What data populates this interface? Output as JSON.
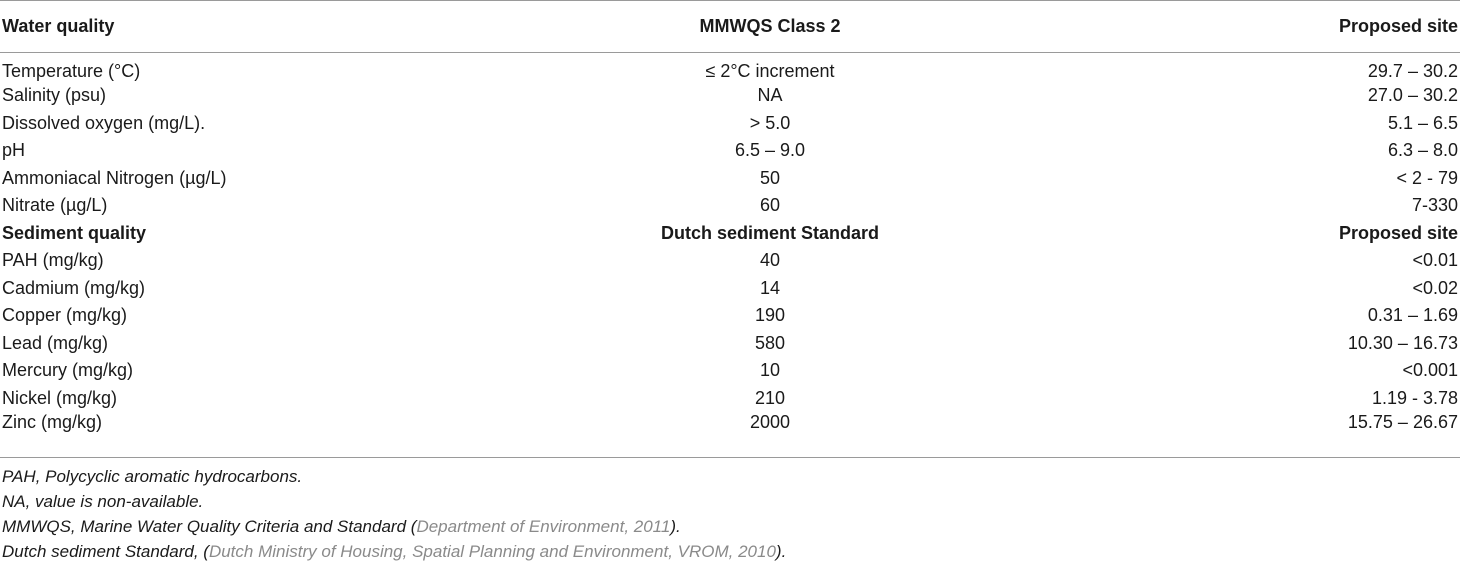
{
  "header": {
    "col1": "Water quality",
    "col2": "MMWQS Class 2",
    "col3": "Proposed site"
  },
  "water_rows": [
    {
      "param": "Temperature (°C)",
      "standard": "≤ 2°C increment",
      "site": "29.7 – 30.2"
    },
    {
      "param": "Salinity (psu)",
      "standard": "NA",
      "site": "27.0 – 30.2"
    },
    {
      "param": "Dissolved oxygen (mg/L).",
      "standard": "> 5.0",
      "site": "5.1 – 6.5"
    },
    {
      "param": "pH",
      "standard": "6.5 – 9.0",
      "site": "6.3 – 8.0"
    },
    {
      "param": "Ammoniacal Nitrogen (µg/L)",
      "standard": "50",
      "site": "< 2 - 79"
    },
    {
      "param": "Nitrate (µg/L)",
      "standard": "60",
      "site": "7-330"
    }
  ],
  "sediment_header": {
    "col1": "Sediment quality",
    "col2": "Dutch sediment Standard",
    "col3": "Proposed site"
  },
  "sediment_rows": [
    {
      "param": "PAH (mg/kg)",
      "standard": "40",
      "site": "<0.01"
    },
    {
      "param": "Cadmium (mg/kg)",
      "standard": "14",
      "site": "<0.02"
    },
    {
      "param": "Copper (mg/kg)",
      "standard": "190",
      "site": "0.31 – 1.69"
    },
    {
      "param": "Lead (mg/kg)",
      "standard": "580",
      "site": "10.30 – 16.73"
    },
    {
      "param": "Mercury (mg/kg)",
      "standard": "10",
      "site": "<0.001"
    },
    {
      "param": "Nickel (mg/kg)",
      "standard": "210",
      "site": "1.19 - 3.78"
    },
    {
      "param": "Zinc (mg/kg)",
      "standard": "2000",
      "site": "15.75 – 26.67"
    }
  ],
  "footnotes": {
    "pah": "PAH, Polycyclic aromatic hydrocarbons.",
    "na": "NA, value is non-available.",
    "mmwqs_text": "MMWQS, Marine Water Quality Criteria and Standard (",
    "mmwqs_ref": "Department of Environment, 2011",
    "mmwqs_end": ").",
    "dutch_text": "Dutch sediment Standard, (",
    "dutch_ref": "Dutch Ministry of Housing, Spatial Planning and Environment, VROM, 2010",
    "dutch_end": ")."
  },
  "colors": {
    "text": "#1a1a1a",
    "rule": "#9a9a9a",
    "reference_link": "#8a8a8a"
  }
}
